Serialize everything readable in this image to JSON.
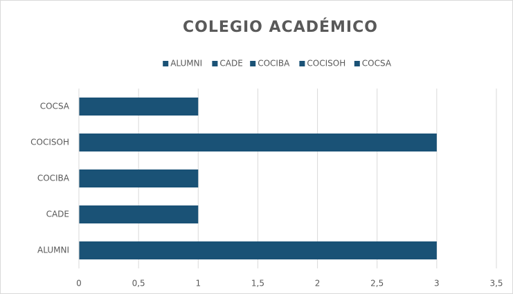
{
  "chart_data": {
    "type": "bar",
    "orientation": "horizontal",
    "title": "COLEGIO ACADÉMICO",
    "categories": [
      "ALUMNI",
      "CADE",
      "COCIBA",
      "COCISOH",
      "COCSA"
    ],
    "values": [
      3,
      1,
      1,
      3,
      1
    ],
    "color": "#1a5276",
    "xlim": [
      0,
      3.5
    ],
    "xticks": [
      0,
      {
        "value": 0.5,
        "label": "0,5"
      },
      1,
      {
        "value": 1.5,
        "label": "1,5"
      },
      2,
      {
        "value": 2.5,
        "label": "2,5"
      },
      3,
      {
        "value": 3.5,
        "label": "3,5"
      }
    ],
    "grid": true,
    "legend": "top"
  }
}
